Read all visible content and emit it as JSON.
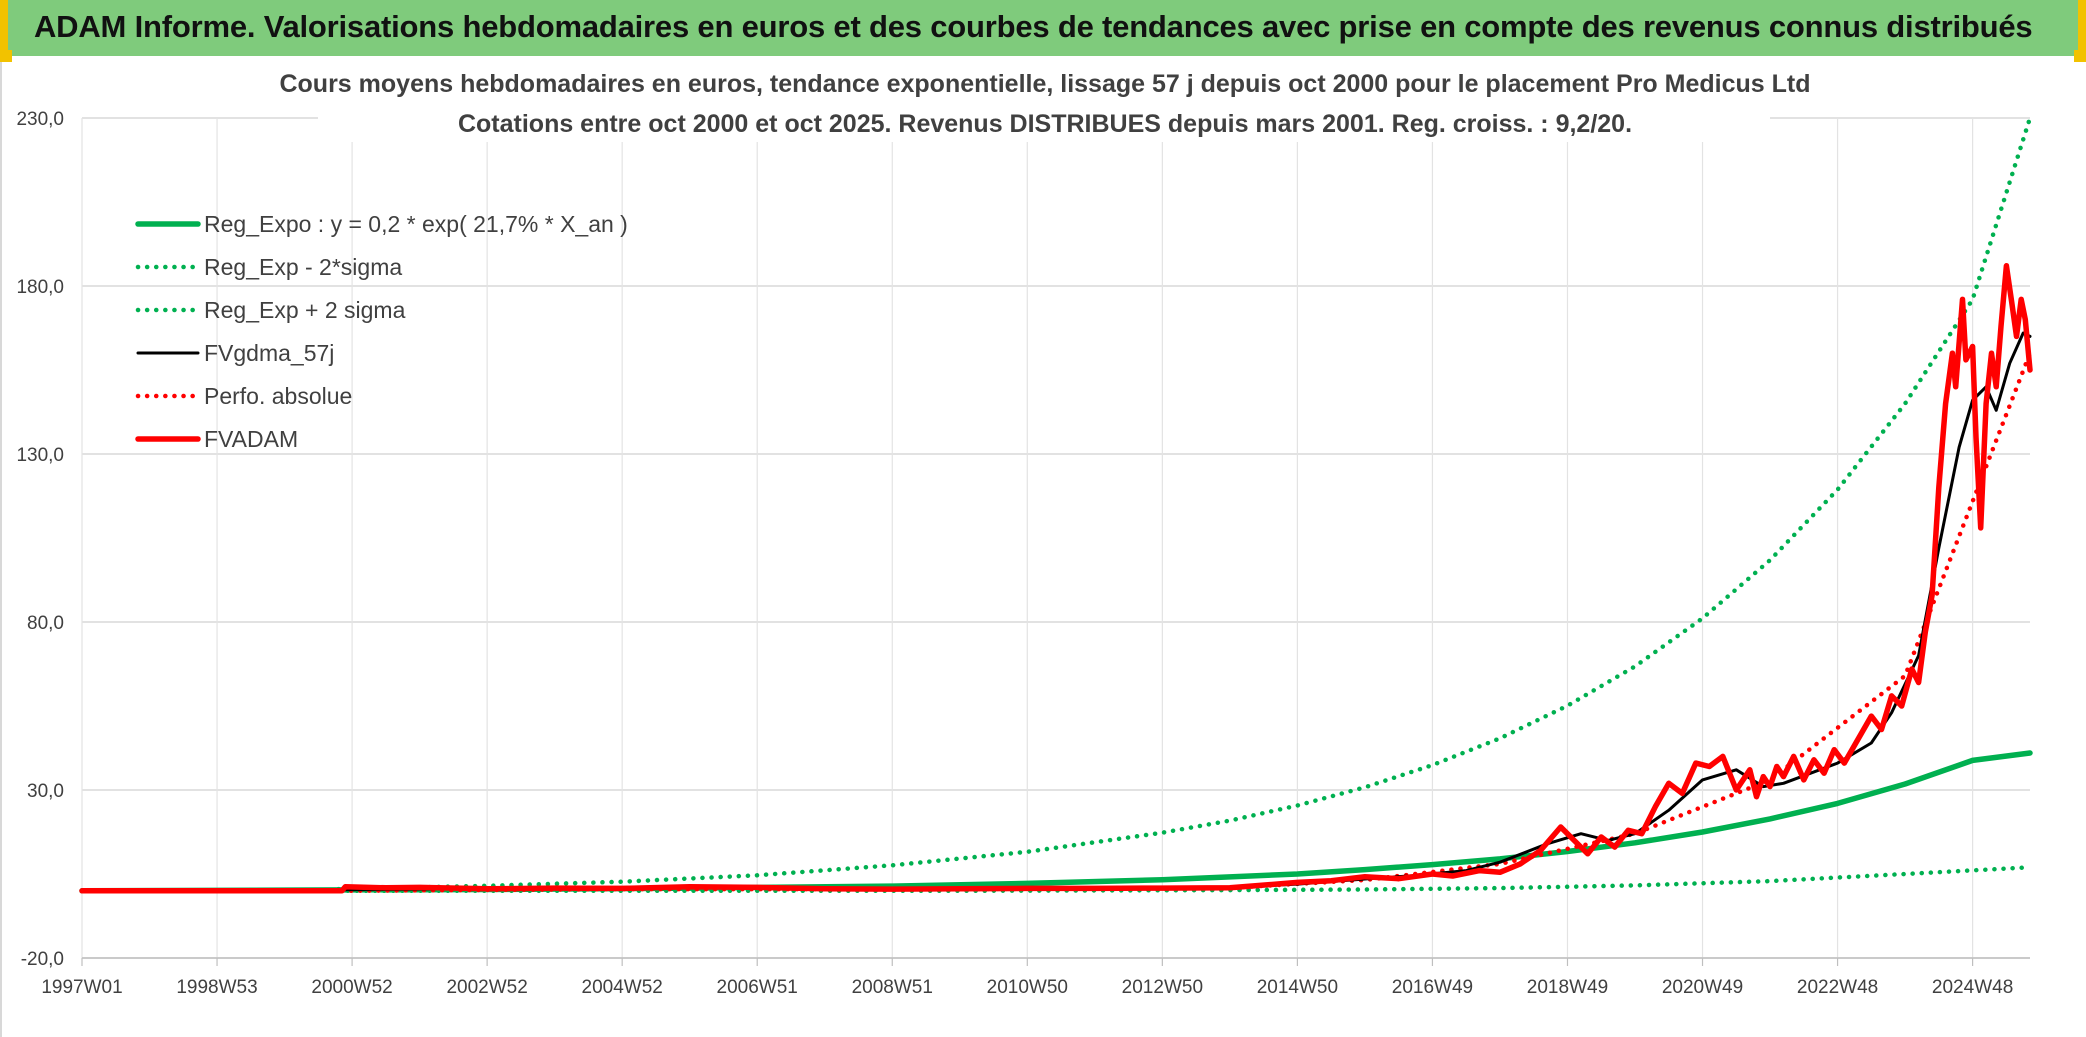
{
  "header": {
    "title": "ADAM Informe. Valorisations hebdomadaires en euros et des courbes de tendances avec prise en compte des revenus connus distribués"
  },
  "colors": {
    "header_bg": "#7fcb7c",
    "accent_yellow": "#f2c200",
    "reg_expo": "#00b050",
    "bands": "#00b050",
    "fvgdma": "#000000",
    "perfo": "#ff0000",
    "fvadam": "#ff0000"
  },
  "chart_data": {
    "type": "line",
    "title_line1": "Cours moyens hebdomadaires en euros, tendance exponentielle, lissage 57 j depuis oct 2000 pour le placement Pro Medicus Ltd",
    "title_line2": "Cotations entre oct 2000 et oct 2025. Revenus DISTRIBUES depuis mars 2001. Reg. croiss. : 9,2/20.",
    "xlabel": "",
    "ylabel": "",
    "xlim": [
      1997.0,
      2025.85
    ],
    "ylim": [
      -20,
      230
    ],
    "y_ticks": [
      "-20,0",
      "30,0",
      "80,0",
      "130,0",
      "180,0",
      "230,0"
    ],
    "y_tick_values": [
      -20,
      30,
      80,
      130,
      180,
      230
    ],
    "x_ticks": [
      {
        "label": "1997W01",
        "x": 1997.0
      },
      {
        "label": "1998W53",
        "x": 1999.0
      },
      {
        "label": "2000W52",
        "x": 2001.0
      },
      {
        "label": "2002W52",
        "x": 2003.0
      },
      {
        "label": "2004W52",
        "x": 2005.0
      },
      {
        "label": "2006W51",
        "x": 2007.0
      },
      {
        "label": "2008W51",
        "x": 2009.0
      },
      {
        "label": "2010W50",
        "x": 2011.0
      },
      {
        "label": "2012W50",
        "x": 2013.0
      },
      {
        "label": "2014W50",
        "x": 2015.0
      },
      {
        "label": "2016W49",
        "x": 2017.0
      },
      {
        "label": "2018W49",
        "x": 2019.0
      },
      {
        "label": "2020W49",
        "x": 2021.0
      },
      {
        "label": "2022W48",
        "x": 2023.0
      },
      {
        "label": "2024W48",
        "x": 2025.0
      }
    ],
    "grid": true,
    "legend_position": "top-left",
    "series": [
      {
        "name": "Reg_Expo : y = 0,2 * exp( 21,7% *  X_an )",
        "style": "solid-thick",
        "color": "#00b050",
        "x": [
          1997.0,
          2000.0,
          2003.0,
          2006.0,
          2009.0,
          2011.0,
          2013.0,
          2015.0,
          2016.0,
          2017.0,
          2018.0,
          2019.0,
          2020.0,
          2021.0,
          2022.0,
          2023.0,
          2024.0,
          2025.0,
          2025.85
        ],
        "y": [
          0.0,
          0.2,
          0.4,
          0.8,
          1.4,
          2.2,
          3.3,
          5.0,
          6.3,
          7.8,
          9.5,
          11.7,
          14.3,
          17.5,
          21.4,
          26.0,
          31.8,
          38.8,
          41.0
        ]
      },
      {
        "name": "Reg_Exp - 2*sigma",
        "style": "dotted",
        "color": "#00b050",
        "x": [
          2000.8,
          2005.0,
          2010.0,
          2014.0,
          2016.0,
          2018.0,
          2020.0,
          2022.0,
          2024.0,
          2025.85
        ],
        "y": [
          0.0,
          0.0,
          0.0,
          0.2,
          0.4,
          0.8,
          1.6,
          2.9,
          5.0,
          7.0
        ]
      },
      {
        "name": "Reg_Exp + 2 sigma",
        "style": "dotted",
        "color": "#00b050",
        "x": [
          2000.8,
          2003.0,
          2005.0,
          2007.0,
          2009.0,
          2011.0,
          2013.0,
          2014.0,
          2015.0,
          2016.0,
          2017.0,
          2018.0,
          2019.0,
          2020.0,
          2021.0,
          2022.0,
          2023.0,
          2024.0,
          2025.0,
          2025.85
        ],
        "y": [
          0.5,
          1.5,
          2.7,
          4.6,
          7.6,
          11.6,
          17.3,
          20.9,
          25.4,
          30.8,
          37.4,
          45.4,
          55.1,
          66.8,
          81.1,
          98.4,
          119.4,
          145.0,
          176.0,
          230.0
        ]
      },
      {
        "name": "FVgdma_57j",
        "style": "solid",
        "color": "#000000",
        "x": [
          1997.0,
          2000.85,
          2002.0,
          2004.0,
          2006.0,
          2008.0,
          2010.0,
          2012.0,
          2014.0,
          2015.0,
          2016.0,
          2016.7,
          2017.5,
          2018.0,
          2018.7,
          2019.2,
          2019.6,
          2020.0,
          2020.5,
          2021.0,
          2021.5,
          2021.9,
          2022.2,
          2022.6,
          2023.0,
          2023.5,
          2023.8,
          2024.2,
          2024.5,
          2024.8,
          2025.0,
          2025.2,
          2025.35,
          2025.55,
          2025.75,
          2025.85
        ],
        "y": [
          0.0,
          0.3,
          0.5,
          0.8,
          1.2,
          0.7,
          0.6,
          0.7,
          1.0,
          2.0,
          3.5,
          4.5,
          6.0,
          8.5,
          14.0,
          17.0,
          15.0,
          17.0,
          24.0,
          33.0,
          36.0,
          31.0,
          32.0,
          35.0,
          38.0,
          44.0,
          53.0,
          70.0,
          102.0,
          132.0,
          146.0,
          150.0,
          143.0,
          157.0,
          166.0,
          165.0
        ]
      },
      {
        "name": "Perfo. absolue",
        "style": "dotted",
        "color": "#ff0000",
        "x": [
          2000.85,
          2005.0,
          2010.0,
          2014.0,
          2016.0,
          2018.0,
          2020.0,
          2022.0,
          2024.0,
          2025.85
        ],
        "y": [
          0.0,
          0.5,
          0.5,
          0.9,
          3.2,
          8.0,
          17.0,
          33.0,
          64.0,
          160.0
        ]
      },
      {
        "name": "FVADAM",
        "style": "solid-thick",
        "color": "#ff0000",
        "x": [
          1997.0,
          2000.85,
          2000.9,
          2001.5,
          2002.0,
          2003.0,
          2004.0,
          2005.0,
          2006.0,
          2007.0,
          2008.0,
          2009.0,
          2010.0,
          2011.0,
          2012.0,
          2013.0,
          2014.0,
          2015.0,
          2015.5,
          2016.0,
          2016.5,
          2017.0,
          2017.3,
          2017.7,
          2018.0,
          2018.3,
          2018.6,
          2018.9,
          2019.1,
          2019.3,
          2019.5,
          2019.7,
          2019.9,
          2020.1,
          2020.3,
          2020.5,
          2020.7,
          2020.9,
          2021.1,
          2021.3,
          2021.5,
          2021.7,
          2021.8,
          2021.9,
          2022.0,
          2022.1,
          2022.2,
          2022.35,
          2022.5,
          2022.65,
          2022.8,
          2022.95,
          2023.1,
          2023.3,
          2023.5,
          2023.65,
          2023.8,
          2023.95,
          2024.1,
          2024.2,
          2024.3,
          2024.4,
          2024.5,
          2024.6,
          2024.7,
          2024.75,
          2024.85,
          2024.9,
          2025.0,
          2025.05,
          2025.12,
          2025.2,
          2025.28,
          2025.35,
          2025.42,
          2025.5,
          2025.58,
          2025.65,
          2025.72,
          2025.78,
          2025.85
        ],
        "y": [
          0.0,
          0.0,
          1.2,
          0.9,
          1.0,
          0.6,
          0.8,
          0.7,
          1.2,
          1.0,
          0.6,
          0.5,
          0.6,
          0.7,
          0.7,
          0.8,
          0.9,
          2.5,
          3.0,
          4.2,
          3.6,
          5.0,
          4.4,
          6.0,
          5.5,
          8.0,
          12.0,
          19.0,
          15.0,
          11.0,
          16.0,
          13.0,
          18.0,
          17.0,
          25.0,
          32.0,
          29.0,
          38.0,
          37.0,
          40.0,
          30.0,
          36.0,
          28.0,
          34.0,
          31.0,
          37.0,
          34.0,
          40.0,
          33.0,
          39.0,
          35.0,
          42.0,
          38.0,
          45.0,
          52.0,
          48.0,
          58.0,
          55.0,
          66.0,
          62.0,
          77.0,
          88.0,
          120.0,
          145.0,
          160.0,
          150.0,
          176.0,
          158.0,
          162.0,
          135.0,
          108.0,
          145.0,
          160.0,
          150.0,
          168.0,
          186.0,
          175.0,
          165.0,
          176.0,
          170.0,
          155.0
        ]
      }
    ]
  }
}
